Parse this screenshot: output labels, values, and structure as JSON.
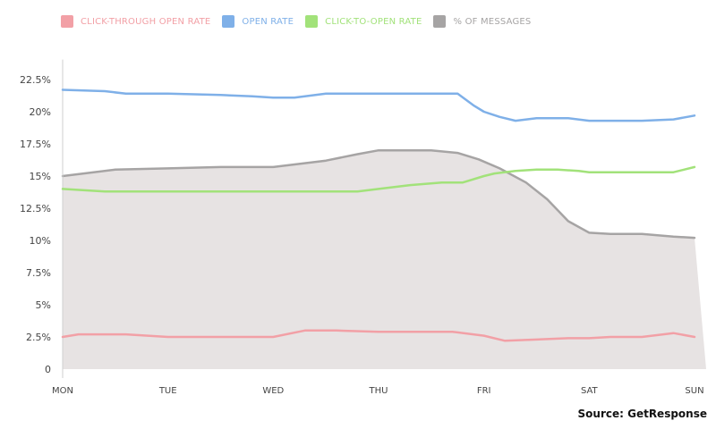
{
  "legend": [
    {
      "label": "CLICK-THROUGH OPEN RATE",
      "color": "#f2a0a6"
    },
    {
      "label": "OPEN RATE",
      "color": "#7fb0e8"
    },
    {
      "label": "CLICK-TO-OPEN RATE",
      "color": "#a2e27a"
    },
    {
      "label": "% OF MESSAGES",
      "color": "#a6a4a4"
    }
  ],
  "source": "Source: GetResponse",
  "chart_data": {
    "type": "line",
    "x_tick_labels": [
      "MON",
      "TUE",
      "WED",
      "THU",
      "FRI",
      "SAT",
      "SUN"
    ],
    "y_tick_labels": [
      "0",
      "2.5%",
      "5%",
      "7.5%",
      "10%",
      "12.5%",
      "15%",
      "17.5%",
      "20%",
      "22.5%"
    ],
    "ylim": [
      0,
      23.5
    ],
    "xlim": [
      0,
      6
    ],
    "grid": false,
    "legend_position": "top-left",
    "series": [
      {
        "name": "CLICK-THROUGH OPEN RATE",
        "color": "#f2a0a6",
        "style": "line",
        "x": [
          0,
          0.15,
          0.6,
          1.0,
          1.5,
          2.0,
          2.3,
          2.6,
          3.0,
          3.5,
          3.7,
          4.0,
          4.2,
          4.5,
          4.8,
          5.0,
          5.2,
          5.5,
          5.8,
          6.0
        ],
        "values": [
          2.5,
          2.7,
          2.7,
          2.5,
          2.5,
          2.5,
          3.0,
          3.0,
          2.9,
          2.9,
          2.9,
          2.6,
          2.2,
          2.3,
          2.4,
          2.4,
          2.5,
          2.5,
          2.8,
          2.5
        ]
      },
      {
        "name": "OPEN RATE",
        "color": "#7fb0e8",
        "style": "line",
        "x": [
          0,
          0.4,
          0.6,
          1.0,
          1.5,
          1.8,
          2.0,
          2.2,
          2.5,
          3.0,
          3.5,
          3.75,
          3.9,
          4.0,
          4.15,
          4.3,
          4.5,
          4.8,
          5.0,
          5.5,
          5.8,
          6.0
        ],
        "values": [
          21.7,
          21.6,
          21.4,
          21.4,
          21.3,
          21.2,
          21.1,
          21.1,
          21.4,
          21.4,
          21.4,
          21.4,
          20.5,
          20.0,
          19.6,
          19.3,
          19.5,
          19.5,
          19.3,
          19.3,
          19.4,
          19.7
        ]
      },
      {
        "name": "CLICK-TO-OPEN RATE",
        "color": "#a2e27a",
        "style": "line",
        "x": [
          0,
          0.4,
          1.0,
          1.5,
          2.0,
          2.5,
          2.8,
          3.0,
          3.3,
          3.6,
          3.8,
          4.0,
          4.1,
          4.3,
          4.5,
          4.7,
          4.9,
          5.0,
          5.5,
          5.8,
          6.0
        ],
        "values": [
          14.0,
          13.8,
          13.8,
          13.8,
          13.8,
          13.8,
          13.8,
          14.0,
          14.3,
          14.5,
          14.5,
          15.0,
          15.2,
          15.4,
          15.5,
          15.5,
          15.4,
          15.3,
          15.3,
          15.3,
          15.7
        ]
      },
      {
        "name": "% OF MESSAGES",
        "color": "#a6a4a4",
        "style": "area",
        "x": [
          0,
          0.2,
          0.5,
          1.0,
          1.5,
          2.0,
          2.5,
          2.8,
          3.0,
          3.5,
          3.75,
          3.95,
          4.15,
          4.4,
          4.6,
          4.8,
          5.0,
          5.2,
          5.5,
          5.8,
          6.0
        ],
        "values": [
          15.0,
          15.2,
          15.5,
          15.6,
          15.7,
          15.7,
          16.2,
          16.7,
          17.0,
          17.0,
          16.8,
          16.3,
          15.6,
          14.5,
          13.2,
          11.5,
          10.6,
          10.5,
          10.5,
          10.3,
          10.2
        ]
      }
    ]
  }
}
